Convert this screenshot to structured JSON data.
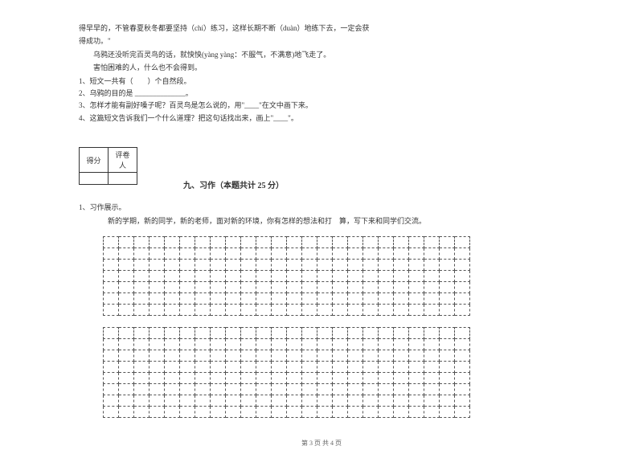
{
  "passage": {
    "line1": "得早早的，不管春夏秋冬都要坚持（chí）练习，这样长期不断（duàn）地练下去，一定会获",
    "line2": "得成功。\"",
    "line3": "乌鸦还没听完百灵鸟的话，就怏怏(yàng yàng：不服气，不满意)地飞走了。",
    "line4": "害怕困难的人，什么也不会得到。"
  },
  "questions": {
    "q1": "1、短文一共有（　　）个自然段。",
    "q2": "2、乌鸦的目的是 ______________。",
    "q3": "3、怎样才能有副好嗓子呢？百灵鸟是怎么说的，用\"____\"在文中画下来。",
    "q4": "4、这篇短文告诉我们一个什么道理？把这句话找出来，画上\"____\"。"
  },
  "scoreTable": {
    "col1": "得分",
    "col2": "评卷人"
  },
  "section": {
    "title": "九、习作（本题共计 25 分）"
  },
  "writing": {
    "label": "1、习作展示。",
    "prompt": "新的学期，新的同学，新的老师，面对新的环境，你有怎样的想法和打　算，写下来和同学们交流。"
  },
  "grid": {
    "cols": 24,
    "rows1": 7,
    "rows2": 8
  },
  "footer": "第 3 页 共 4 页"
}
